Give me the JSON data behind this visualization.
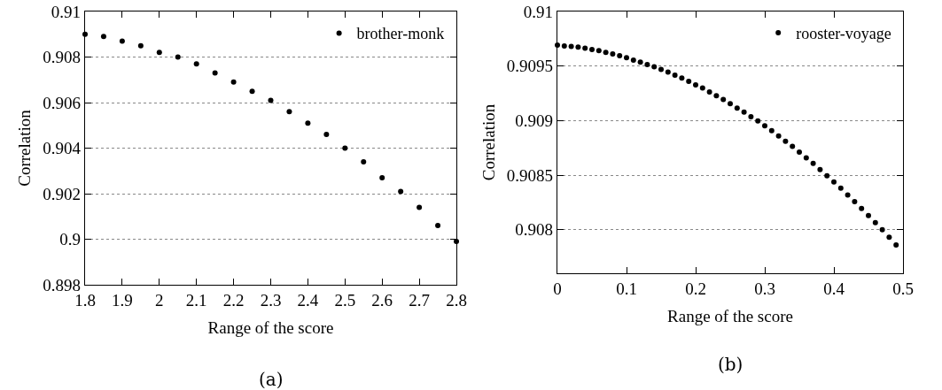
{
  "chart_data": [
    {
      "type": "scatter",
      "title": "(a)",
      "xlabel": "Range of the score",
      "ylabel": "Correlation",
      "x": [
        1.8,
        1.85,
        1.9,
        1.95,
        2.0,
        2.05,
        2.1,
        2.15,
        2.2,
        2.25,
        2.3,
        2.35,
        2.4,
        2.45,
        2.5,
        2.55,
        2.6,
        2.65,
        2.7,
        2.75,
        2.8
      ],
      "series": [
        {
          "name": "brother-monk",
          "color": "#000000",
          "values": [
            0.909,
            0.9089,
            0.9087,
            0.9085,
            0.9082,
            0.908,
            0.9077,
            0.9073,
            0.9069,
            0.9065,
            0.9061,
            0.9056,
            0.9051,
            0.9046,
            0.904,
            0.9034,
            0.9027,
            0.9021,
            0.9014,
            0.9006,
            0.8999
          ]
        }
      ],
      "xlim": [
        1.8,
        2.8
      ],
      "xticks": [
        1.8,
        1.9,
        2,
        2.1,
        2.2,
        2.3,
        2.4,
        2.5,
        2.6,
        2.7,
        2.8
      ],
      "ylim": [
        0.898,
        0.91
      ],
      "yticks": [
        0.898,
        0.9,
        0.902,
        0.904,
        0.906,
        0.908,
        0.91
      ],
      "grid": "y",
      "legend": "top right",
      "marker": "circle"
    },
    {
      "type": "scatter",
      "title": "(b)",
      "xlabel": "Range of the score",
      "ylabel": "Correlation",
      "x": [
        0,
        0.01,
        0.02,
        0.03,
        0.04,
        0.05,
        0.06,
        0.07,
        0.08,
        0.09,
        0.1,
        0.11,
        0.12,
        0.13,
        0.14,
        0.15,
        0.16,
        0.17,
        0.18,
        0.19,
        0.2,
        0.21,
        0.22,
        0.23,
        0.24,
        0.25,
        0.26,
        0.27,
        0.28,
        0.29,
        0.3,
        0.31,
        0.32,
        0.33,
        0.34,
        0.35,
        0.36,
        0.37,
        0.38,
        0.39,
        0.4,
        0.41,
        0.42,
        0.43,
        0.44,
        0.45,
        0.46,
        0.47,
        0.48,
        0.49
      ],
      "series": [
        {
          "name": "rooster-voyage",
          "color": "#000000",
          "values": [
            0.909692,
            0.909684,
            0.909679,
            0.909673,
            0.909663,
            0.909652,
            0.909641,
            0.909625,
            0.909611,
            0.909595,
            0.909576,
            0.909555,
            0.909536,
            0.909514,
            0.909493,
            0.909468,
            0.909444,
            0.909417,
            0.90939,
            0.90936,
            0.909328,
            0.909298,
            0.909263,
            0.909228,
            0.909193,
            0.909155,
            0.909115,
            0.909077,
            0.909036,
            0.908996,
            0.908953,
            0.908907,
            0.908858,
            0.90881,
            0.908764,
            0.90871,
            0.908659,
            0.908607,
            0.908551,
            0.908494,
            0.908437,
            0.908381,
            0.908318,
            0.908256,
            0.908194,
            0.908129,
            0.908065,
            0.908,
            0.90793,
            0.90786
          ]
        }
      ],
      "xlim": [
        0,
        0.5
      ],
      "xticks": [
        0,
        0.1,
        0.2,
        0.3,
        0.4,
        0.5
      ],
      "ylim": [
        0.9076,
        0.91
      ],
      "yticks": [
        0.908,
        0.9085,
        0.909,
        0.9095,
        0.91
      ],
      "grid": "y",
      "legend": "top right",
      "marker": "circle"
    }
  ]
}
